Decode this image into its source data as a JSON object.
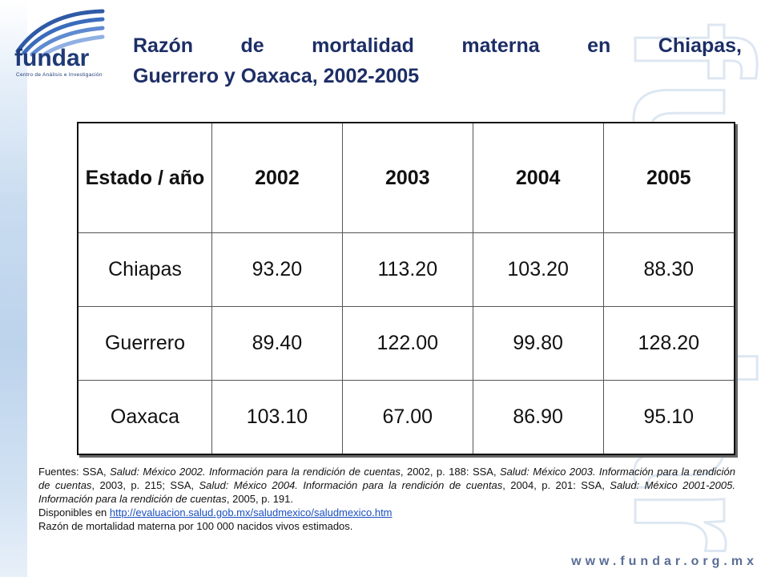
{
  "brand": {
    "name": "fundar",
    "tagline": "Centro de Análisis e Investigación",
    "watermark": "fundar",
    "url": "www.fundar.org.mx",
    "color": "#1f3a78"
  },
  "title": {
    "line1": "Razón de mortalidad materna en Chiapas,",
    "line2": "Guerrero y Oaxaca, 2002-2005"
  },
  "table": {
    "header": [
      "Estado / año",
      "2002",
      "2003",
      "2004",
      "2005"
    ],
    "rows": [
      [
        "Chiapas",
        "93.20",
        "113.20",
        "103.20",
        "88.30"
      ],
      [
        "Guerrero",
        "89.40",
        "122.00",
        "99.80",
        "128.20"
      ],
      [
        "Oaxaca",
        "103.10",
        "67.00",
        "86.90",
        "95.10"
      ]
    ]
  },
  "sources": {
    "prefix": "Fuentes: SSA, ",
    "s1_title": "Salud: México 2002. Información para la rendición de cuentas",
    "s1_rest": ", 2002, p. 188: SSA, ",
    "s2_title": "Salud: México 2003. Información para la rendición de cuentas",
    "s2_rest": ", 2003, p. 215; SSA, ",
    "s3_title": "Salud: México 2004. Información para la rendición de cuentas",
    "s3_rest": ", 2004, p. 201: SSA, ",
    "s4_title": "Salud: México 2001-2005. Información para la rendición de cuentas",
    "s4_rest": ", 2005, p. 191.",
    "available_prefix": "Disponibles en ",
    "link": "http://evaluacion.salud.gob.mx/saludmexico/saludmexico.htm",
    "note": "Razón de mortalidad materna por 100 000 nacidos vivos estimados."
  }
}
